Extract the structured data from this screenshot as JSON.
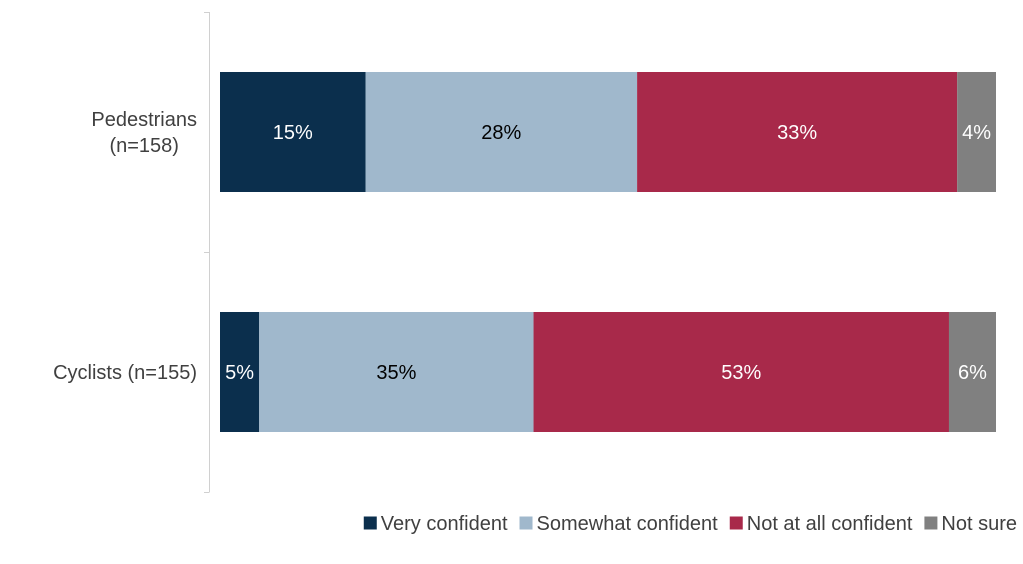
{
  "chart_data": {
    "type": "bar",
    "orientation": "horizontal",
    "stacked": true,
    "categories": [
      "Pedestrians (n=158)",
      "Cyclists (n=155)"
    ],
    "category_label_lines": [
      [
        "Pedestrians",
        "(n=158)"
      ],
      [
        "Cyclists (n=155)"
      ]
    ],
    "series": [
      {
        "name": "Very confident",
        "values": [
          15,
          5
        ],
        "labels": [
          "15%",
          "5%"
        ],
        "color": "#0b2f4d",
        "label_color": "#ffffff"
      },
      {
        "name": "Somewhat confident",
        "values": [
          28,
          35
        ],
        "labels": [
          "28%",
          "35%"
        ],
        "color": "#a0b8cc",
        "label_color": "#000000"
      },
      {
        "name": "Not at all confident",
        "values": [
          33,
          53
        ],
        "labels": [
          "33%",
          "53%"
        ],
        "color": "#a8294a",
        "label_color": "#ffffff"
      },
      {
        "name": "Not sure",
        "values": [
          4,
          6
        ],
        "labels": [
          "4%",
          "6%"
        ],
        "color": "#808080",
        "label_color": "#ffffff"
      }
    ],
    "legend_position": "bottom-right",
    "grid": false,
    "title": "",
    "xlabel": "",
    "ylabel": ""
  }
}
